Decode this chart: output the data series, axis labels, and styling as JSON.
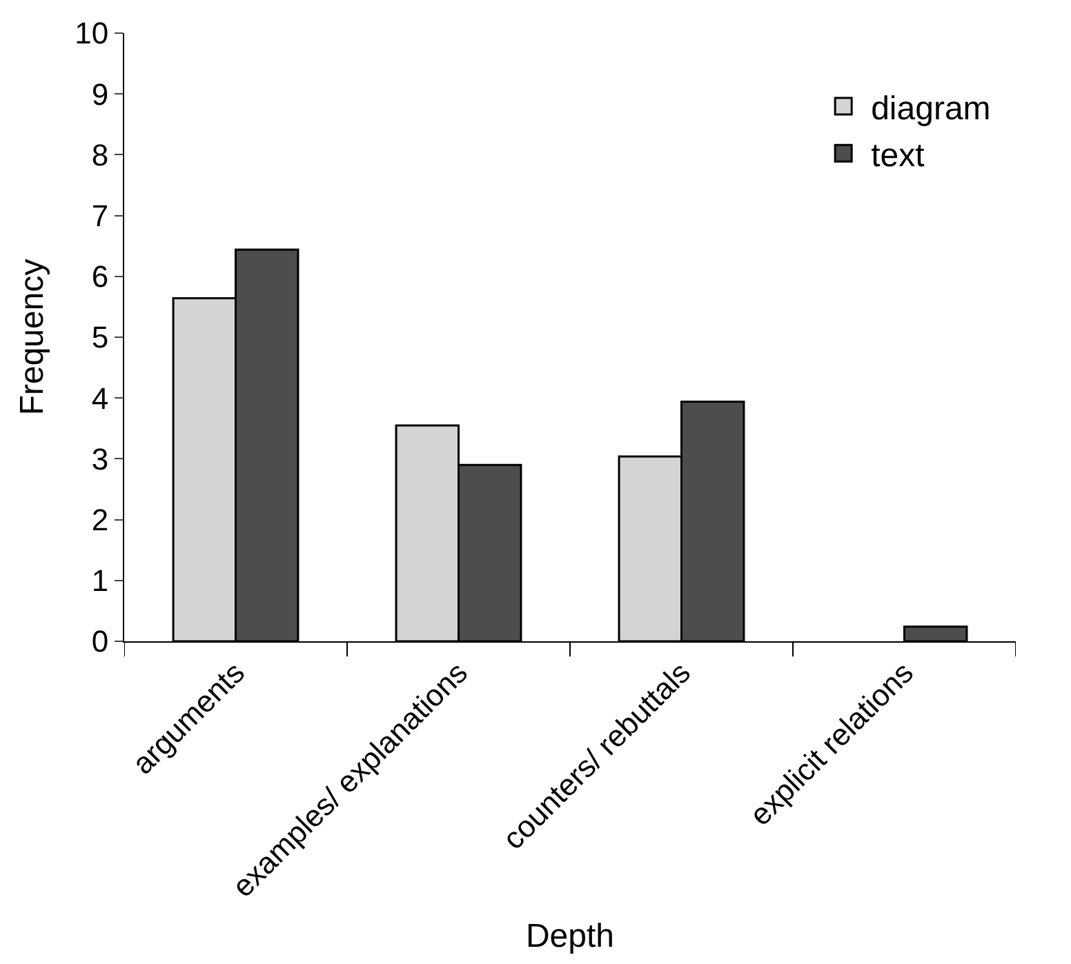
{
  "chart_data": {
    "type": "bar",
    "xlabel": "Depth",
    "ylabel": "Frequency",
    "categories": [
      "arguments",
      "examples/ explanations",
      "counters/ rebuttals",
      "explicit relations"
    ],
    "series": [
      {
        "name": "diagram",
        "color": "#d4d4d4",
        "values": [
          5.64,
          3.55,
          3.04,
          null
        ]
      },
      {
        "name": "text",
        "color": "#4d4d4d",
        "values": [
          6.44,
          2.9,
          3.94,
          0.24
        ]
      }
    ],
    "ylim": [
      0,
      10
    ],
    "yticks": [
      0,
      1,
      2,
      3,
      4,
      5,
      6,
      7,
      8,
      9,
      10
    ],
    "grid": false,
    "legend": "top right"
  }
}
